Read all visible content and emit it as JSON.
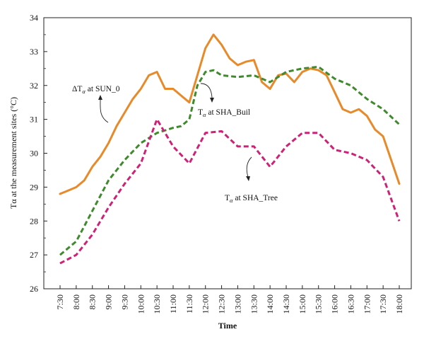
{
  "chart_data": {
    "type": "line",
    "xlabel": "Time",
    "ylabel": "Tα at the measurement sites (°C)",
    "ylim": [
      26,
      34
    ],
    "yticks": [
      26,
      27,
      28,
      29,
      30,
      31,
      32,
      33,
      34
    ],
    "categories": [
      "7:30",
      "8:00",
      "8:30",
      "9:00",
      "9:30",
      "10:00",
      "10:30",
      "11:00",
      "11:30",
      "12:00",
      "12:30",
      "13:00",
      "13:30",
      "14:00",
      "14:30",
      "15:00",
      "15:30",
      "16:00",
      "16:30",
      "17:00",
      "17:30",
      "18:00"
    ],
    "grid": false,
    "legend": "none",
    "series": [
      {
        "name": "ΔTα at SUN_0",
        "color": "#e8892a",
        "dash": "solid",
        "points": [
          [
            "7:30",
            28.8
          ],
          [
            "7:45",
            28.9
          ],
          [
            "8:00",
            29.0
          ],
          [
            "8:15",
            29.2
          ],
          [
            "8:30",
            29.6
          ],
          [
            "8:45",
            29.9
          ],
          [
            "9:00",
            30.3
          ],
          [
            "9:15",
            30.8
          ],
          [
            "9:30",
            31.2
          ],
          [
            "9:45",
            31.6
          ],
          [
            "10:00",
            31.9
          ],
          [
            "10:15",
            32.3
          ],
          [
            "10:30",
            32.4
          ],
          [
            "10:45",
            31.9
          ],
          [
            "11:00",
            31.9
          ],
          [
            "11:15",
            31.7
          ],
          [
            "11:30",
            31.5
          ],
          [
            "11:45",
            32.3
          ],
          [
            "12:00",
            33.1
          ],
          [
            "12:15",
            33.5
          ],
          [
            "12:30",
            33.2
          ],
          [
            "12:45",
            32.8
          ],
          [
            "13:00",
            32.6
          ],
          [
            "13:15",
            32.7
          ],
          [
            "13:30",
            32.75
          ],
          [
            "13:45",
            32.1
          ],
          [
            "14:00",
            31.9
          ],
          [
            "14:15",
            32.3
          ],
          [
            "14:30",
            32.35
          ],
          [
            "14:45",
            32.1
          ],
          [
            "15:00",
            32.4
          ],
          [
            "15:15",
            32.5
          ],
          [
            "15:30",
            32.45
          ],
          [
            "15:45",
            32.3
          ],
          [
            "16:00",
            31.8
          ],
          [
            "16:15",
            31.3
          ],
          [
            "16:30",
            31.2
          ],
          [
            "16:45",
            31.3
          ],
          [
            "17:00",
            31.1
          ],
          [
            "17:15",
            30.7
          ],
          [
            "17:30",
            30.5
          ],
          [
            "17:45",
            29.8
          ],
          [
            "18:00",
            29.1
          ]
        ]
      },
      {
        "name": "Tα at SHA_Buil",
        "color": "#3f8a2c",
        "dash": "dashed",
        "points": [
          [
            "7:30",
            27.0
          ],
          [
            "8:00",
            27.4
          ],
          [
            "8:30",
            28.3
          ],
          [
            "9:00",
            29.2
          ],
          [
            "9:30",
            29.8
          ],
          [
            "10:00",
            30.3
          ],
          [
            "10:30",
            30.6
          ],
          [
            "11:00",
            30.75
          ],
          [
            "11:15",
            30.8
          ],
          [
            "11:30",
            31.0
          ],
          [
            "11:45",
            32.0
          ],
          [
            "12:00",
            32.4
          ],
          [
            "12:15",
            32.45
          ],
          [
            "12:30",
            32.3
          ],
          [
            "13:00",
            32.25
          ],
          [
            "13:30",
            32.3
          ],
          [
            "14:00",
            32.1
          ],
          [
            "14:30",
            32.4
          ],
          [
            "15:00",
            32.5
          ],
          [
            "15:30",
            32.55
          ],
          [
            "16:00",
            32.2
          ],
          [
            "16:30",
            32.0
          ],
          [
            "17:00",
            31.6
          ],
          [
            "17:30",
            31.3
          ],
          [
            "18:00",
            30.85
          ]
        ]
      },
      {
        "name": "Tα at SHA_Tree",
        "color": "#cc2277",
        "dash": "dashed",
        "points": [
          [
            "7:30",
            26.75
          ],
          [
            "8:00",
            27.0
          ],
          [
            "8:30",
            27.6
          ],
          [
            "9:00",
            28.4
          ],
          [
            "9:30",
            29.1
          ],
          [
            "10:00",
            29.7
          ],
          [
            "10:30",
            31.0
          ],
          [
            "11:00",
            30.2
          ],
          [
            "11:30",
            29.7
          ],
          [
            "12:00",
            30.6
          ],
          [
            "12:30",
            30.65
          ],
          [
            "13:00",
            30.2
          ],
          [
            "13:30",
            30.2
          ],
          [
            "14:00",
            29.6
          ],
          [
            "14:30",
            30.2
          ],
          [
            "15:00",
            30.6
          ],
          [
            "15:30",
            30.6
          ],
          [
            "16:00",
            30.1
          ],
          [
            "16:30",
            30.0
          ],
          [
            "17:00",
            29.8
          ],
          [
            "17:30",
            29.3
          ],
          [
            "18:00",
            28.0
          ]
        ]
      }
    ],
    "annotations": [
      {
        "text_main": "ΔT",
        "text_sub": "α",
        "text_rest": " at SUN_0"
      },
      {
        "text_main": "T",
        "text_sub": "α",
        "text_rest": " at SHA_Buil"
      },
      {
        "text_main": "T",
        "text_sub": "α",
        "text_rest": " at SHA_Tree"
      }
    ]
  }
}
